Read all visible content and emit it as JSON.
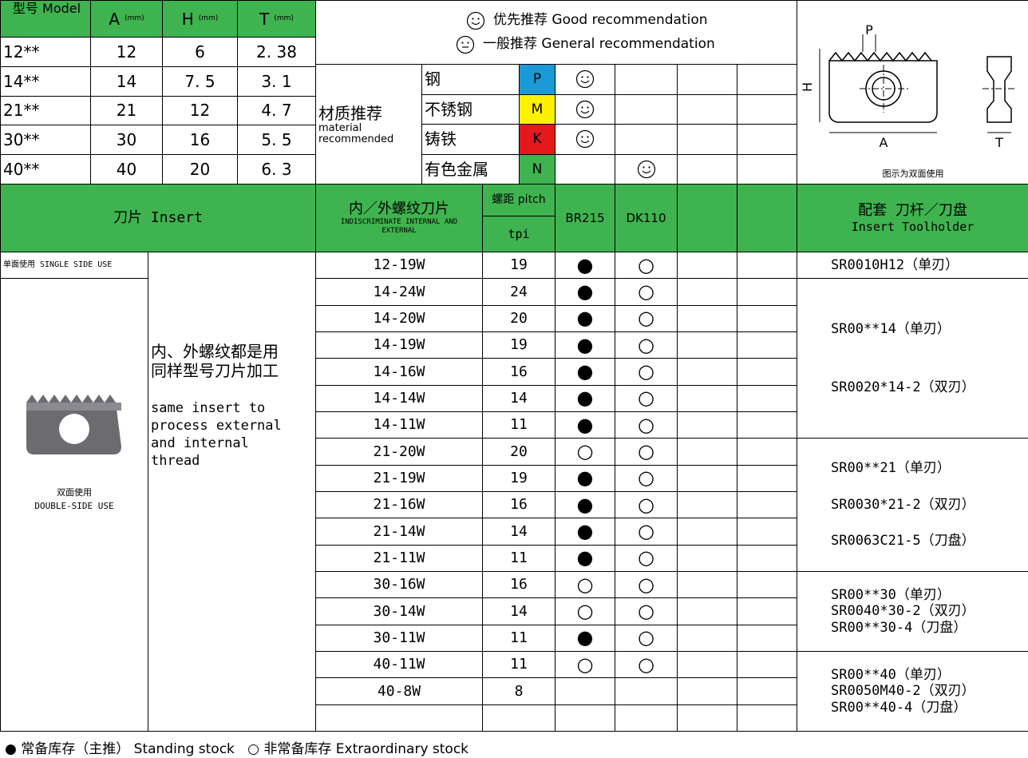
{
  "size_table": {
    "header": [
      {
        "label": "型号 Model"
      },
      {
        "label": "A",
        "unit": "(mm)"
      },
      {
        "label": "H",
        "unit": "(mm)"
      },
      {
        "label": "T",
        "unit": "(mm)"
      }
    ],
    "rows": [
      [
        "12**",
        "12",
        "6",
        "2. 38"
      ],
      [
        "14**",
        "14",
        "7. 5",
        "3. 1"
      ],
      [
        "21**",
        "21",
        "12",
        "4. 7"
      ],
      [
        "30**",
        "30",
        "16",
        "5. 5"
      ],
      [
        "40**",
        "40",
        "20",
        "6. 3"
      ]
    ]
  },
  "recommend_legend": {
    "good": "优先推荐  Good recommendation",
    "general": "一般推荐  General recommendation"
  },
  "materials": {
    "title": "材质推荐",
    "subtitle": "material recommended",
    "rows": [
      {
        "name": "钢",
        "code": "P",
        "color": "#1a9ad6",
        "br215": "good",
        "dk110": null
      },
      {
        "name": "不锈钢",
        "code": "M",
        "color": "#fff200",
        "br215": "good",
        "dk110": null
      },
      {
        "name": "铸铁",
        "code": "K",
        "color": "#e3191b",
        "br215": "good",
        "dk110": null
      },
      {
        "name": "有色金属",
        "code": "N",
        "color": "#3fb34f",
        "br215": null,
        "dk110": "good"
      }
    ]
  },
  "drawing": {
    "p": "P",
    "h": "H",
    "a": "A",
    "t": "T",
    "caption": "图示为双面使用"
  },
  "header": {
    "insert": "刀片 Insert",
    "thread_cn": "内／外螺纹刀片",
    "thread_en": "INDISCRIMINATE INTERNAL AND EXTERNAL",
    "pitch": "螺距 pitch",
    "tpi": "tpi",
    "br215": "BR215",
    "dk110": "DK110",
    "holder_cn": "配套 刀杆／刀盘",
    "holder_en": "Insert Toolholder"
  },
  "single_side": "单面使用 SINGLE SIDE USE",
  "double_side": [
    "双面使用",
    "DOUBLE-SIDE USE"
  ],
  "description": {
    "cn": [
      "内、外螺纹都是用",
      "同样型号刀片加工"
    ],
    "en": [
      "same insert to",
      "process external",
      "and internal",
      "thread"
    ]
  },
  "rows": [
    {
      "thread": "12-19W",
      "tpi": "19",
      "br215": "●",
      "dk110": "○"
    },
    {
      "thread": "14-24W",
      "tpi": "24",
      "br215": "●",
      "dk110": "○"
    },
    {
      "thread": "14-20W",
      "tpi": "20",
      "br215": "●",
      "dk110": "○"
    },
    {
      "thread": "14-19W",
      "tpi": "19",
      "br215": "●",
      "dk110": "○"
    },
    {
      "thread": "14-16W",
      "tpi": "16",
      "br215": "●",
      "dk110": "○"
    },
    {
      "thread": "14-14W",
      "tpi": "14",
      "br215": "●",
      "dk110": "○"
    },
    {
      "thread": "14-11W",
      "tpi": "11",
      "br215": "●",
      "dk110": "○"
    },
    {
      "thread": "21-20W",
      "tpi": "20",
      "br215": "○",
      "dk110": "○"
    },
    {
      "thread": "21-19W",
      "tpi": "19",
      "br215": "●",
      "dk110": "○"
    },
    {
      "thread": "21-16W",
      "tpi": "16",
      "br215": "●",
      "dk110": "○"
    },
    {
      "thread": "21-14W",
      "tpi": "14",
      "br215": "●",
      "dk110": "○"
    },
    {
      "thread": "21-11W",
      "tpi": "11",
      "br215": "●",
      "dk110": "○"
    },
    {
      "thread": "30-16W",
      "tpi": "16",
      "br215": "○",
      "dk110": "○"
    },
    {
      "thread": "30-14W",
      "tpi": "14",
      "br215": "○",
      "dk110": "○"
    },
    {
      "thread": "30-11W",
      "tpi": "11",
      "br215": "●",
      "dk110": "○"
    },
    {
      "thread": "40-11W",
      "tpi": "11",
      "br215": "○",
      "dk110": "○"
    },
    {
      "thread": "40-8W",
      "tpi": "8",
      "br215": null,
      "dk110": null
    },
    {
      "thread": null,
      "tpi": null,
      "br215": null,
      "dk110": null
    }
  ],
  "toolholders": [
    [
      "SR0010H12（单刃）"
    ],
    [
      "SR00**14（单刃）",
      "SR0020*14-2（双刃）"
    ],
    [
      "SR00**21（单刃）",
      "SR0030*21-2（双刃）",
      "SR0063C21-5（刀盘）"
    ],
    [
      "SR00**30（单刃）",
      "SR0040*30-2（双刃）",
      "SR00**30-4（刀盘）"
    ],
    [
      "SR00**40（单刃）",
      "SR0050M40-2（双刃）",
      "SR00**40-4（刀盘）"
    ]
  ],
  "footer": {
    "filled": "●",
    "filled_text": "常备库存（主推）  Standing stock",
    "open": "○",
    "open_text": "非常备库存  Extraordinary stock"
  }
}
